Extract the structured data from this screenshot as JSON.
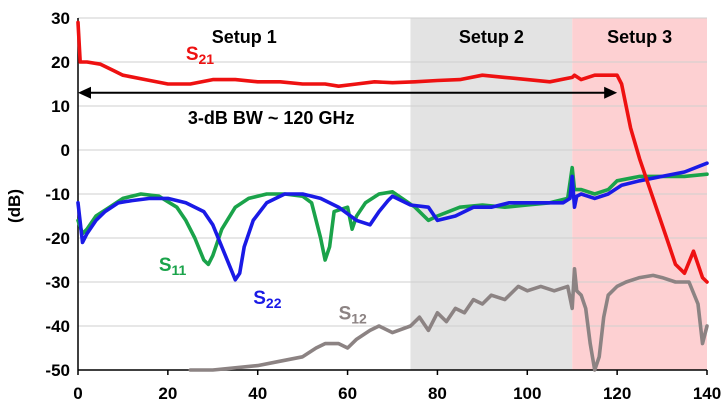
{
  "chart_data": {
    "type": "line",
    "title": "",
    "xlabel": "",
    "ylabel": "(dB)",
    "xlim": [
      0,
      140
    ],
    "ylim": [
      -50,
      30
    ],
    "x_ticks": [
      "0",
      "20",
      "40",
      "60",
      "80",
      "100",
      "120",
      "140"
    ],
    "y_ticks": [
      "-50",
      "-40",
      "-30",
      "-20",
      "-10",
      "0",
      "10",
      "20",
      "30"
    ],
    "grid": true,
    "legend": "none",
    "regions": [
      {
        "label": "Setup 1",
        "x_range": [
          0,
          74
        ],
        "color": "#ffffff"
      },
      {
        "label": "Setup 2",
        "x_range": [
          74,
          110
        ],
        "color": "#e3e3e3"
      },
      {
        "label": "Setup 3",
        "x_range": [
          110,
          140
        ],
        "color": "#fdd0d2"
      }
    ],
    "annotation": {
      "text": "3-dB BW ~ 120 GHz",
      "x_from": 0,
      "x_to": 120,
      "y": 13
    },
    "series": [
      {
        "name": "S21",
        "label_main": "S",
        "label_sub": "21",
        "color": "#ee1111",
        "x": [
          0,
          0.5,
          2,
          5,
          8,
          10,
          15,
          20,
          25,
          30,
          35,
          40,
          45,
          50,
          55,
          58,
          62,
          66,
          70,
          75,
          80,
          85,
          90,
          95,
          100,
          105,
          110,
          110.5,
          112,
          115,
          118,
          120,
          121,
          123,
          125,
          127,
          129,
          131,
          133,
          135,
          137,
          139,
          140
        ],
        "y": [
          29,
          20,
          20,
          19.5,
          18,
          17,
          16,
          15,
          15,
          16,
          16,
          15.5,
          15.5,
          15,
          15,
          14.5,
          15,
          15.5,
          15.3,
          15.5,
          15.8,
          16,
          17,
          16.5,
          16,
          15.5,
          16.5,
          17,
          16,
          17,
          17,
          17,
          15,
          5,
          -2,
          -8,
          -14,
          -20,
          -26,
          -28,
          -23,
          -29,
          -30
        ]
      },
      {
        "name": "S11",
        "label_main": "S",
        "label_sub": "11",
        "color": "#1aa34a",
        "x": [
          0,
          1,
          2,
          4,
          7,
          10,
          14,
          18,
          22,
          24,
          26,
          28,
          29,
          30,
          32,
          35,
          38,
          42,
          46,
          50,
          52,
          54,
          55,
          56,
          57,
          60,
          61,
          62,
          64,
          67,
          70,
          75,
          78,
          80,
          85,
          90,
          95,
          100,
          105,
          109,
          110,
          110.5,
          112,
          115,
          118,
          120,
          125,
          130,
          135,
          140
        ],
        "y": [
          -16,
          -19,
          -18,
          -15,
          -13,
          -11,
          -10,
          -10.5,
          -13,
          -16,
          -20,
          -25,
          -26,
          -24,
          -18,
          -13,
          -11,
          -10,
          -10,
          -10.5,
          -12,
          -20,
          -25,
          -22,
          -14,
          -13,
          -18,
          -15,
          -12,
          -10,
          -9.5,
          -13,
          -16,
          -15,
          -13,
          -12.5,
          -13,
          -12.5,
          -12,
          -11,
          -4,
          -9,
          -9,
          -10,
          -9,
          -7,
          -6,
          -6,
          -6,
          -5.5
        ]
      },
      {
        "name": "S22",
        "label_main": "S",
        "label_sub": "22",
        "color": "#1a1ae6",
        "x": [
          0,
          1,
          2,
          4,
          6,
          9,
          12,
          16,
          20,
          24,
          28,
          30,
          32,
          34,
          35,
          36,
          37,
          39,
          42,
          46,
          50,
          54,
          58,
          62,
          65,
          67,
          69,
          70,
          74,
          78,
          80,
          84,
          88,
          92,
          96,
          100,
          104,
          108,
          109.5,
          110,
          110.5,
          111,
          112,
          115,
          118,
          121,
          125,
          130,
          135,
          140
        ],
        "y": [
          -12,
          -21,
          -19,
          -16,
          -14,
          -12,
          -11.5,
          -11,
          -11,
          -12,
          -14,
          -17,
          -22,
          -27,
          -29.5,
          -28,
          -22,
          -16,
          -12,
          -10,
          -10,
          -11,
          -13,
          -16,
          -17,
          -14,
          -11.5,
          -10.5,
          -12.5,
          -13,
          -16,
          -15,
          -13,
          -13,
          -12,
          -12,
          -12,
          -12,
          -11,
          -6,
          -13,
          -10.5,
          -10,
          -11,
          -10,
          -8,
          -7,
          -6,
          -5,
          -3
        ]
      },
      {
        "name": "S12",
        "label_main": "S",
        "label_sub": "12",
        "color": "#8c8383",
        "x": [
          25,
          30,
          35,
          40,
          45,
          50,
          53,
          55,
          58,
          60,
          62,
          65,
          67,
          70,
          74,
          76,
          78,
          80,
          82,
          84,
          86,
          88,
          90,
          92,
          95,
          98,
          100,
          103,
          106,
          109,
          110,
          110.5,
          111,
          112,
          113,
          114,
          115,
          116,
          117,
          118,
          120,
          122,
          125,
          128,
          130,
          133,
          136,
          138,
          139,
          140
        ],
        "y": [
          -50,
          -50,
          -49.5,
          -49,
          -48,
          -47,
          -45,
          -44,
          -44,
          -45,
          -43,
          -41,
          -40,
          -41.5,
          -40,
          -38,
          -41,
          -37,
          -39,
          -36,
          -37,
          -34,
          -35,
          -33,
          -34,
          -31,
          -32,
          -31,
          -32,
          -31,
          -36,
          -27,
          -32,
          -33,
          -36,
          -44,
          -50,
          -47,
          -38,
          -33,
          -31,
          -30,
          -29,
          -28.5,
          -29,
          -30,
          -30,
          -35,
          -44,
          -40
        ]
      }
    ]
  }
}
